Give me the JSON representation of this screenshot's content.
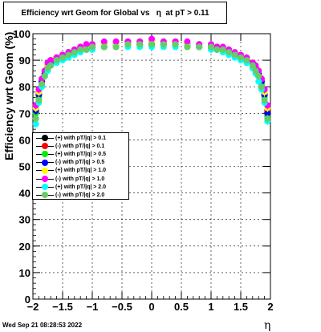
{
  "title": "Efficiency wrt Geom for Global vs   η  at pT > 0.11",
  "datestamp": "Wed Sep 21 08:28:53 2022",
  "chart_data": {
    "type": "scatter",
    "xlabel": "η",
    "ylabel": "Efficiency wrt Geom (%)",
    "xlim": [
      -2,
      2
    ],
    "ylim": [
      0,
      100
    ],
    "x_ticks": [
      "−2",
      "−1.5",
      "−1",
      "−0.5",
      "0",
      "0.5",
      "1",
      "1.5",
      "2"
    ],
    "y_ticks": [
      "0",
      "10",
      "20",
      "30",
      "40",
      "50",
      "60",
      "70",
      "80",
      "90",
      "100"
    ],
    "grid": true,
    "legend_position": "middle-left",
    "x": [
      -1.95,
      -1.9,
      -1.85,
      -1.8,
      -1.75,
      -1.7,
      -1.6,
      -1.5,
      -1.4,
      -1.3,
      -1.2,
      -1.1,
      -1.0,
      -0.8,
      -0.6,
      -0.4,
      -0.2,
      0.0,
      0.2,
      0.4,
      0.6,
      0.8,
      1.0,
      1.1,
      1.2,
      1.3,
      1.4,
      1.5,
      1.6,
      1.7,
      1.75,
      1.8,
      1.85,
      1.9,
      1.95
    ],
    "series": [
      {
        "name": "(+) with pT/|q| > 0.1",
        "color": "#000000",
        "values": [
          71,
          77,
          82,
          85,
          87,
          89,
          90,
          91,
          92,
          93,
          94,
          95,
          95,
          95,
          96,
          96,
          96,
          96,
          96,
          96,
          96,
          95,
          95,
          95,
          94,
          93,
          92,
          91,
          90,
          89,
          87,
          85,
          82,
          77,
          70
        ]
      },
      {
        "name": "(-) with pT/|q| > 0.1",
        "color": "#ff0000",
        "values": [
          72,
          78,
          82,
          86,
          88,
          90,
          91,
          92,
          93,
          94,
          95,
          95,
          96,
          96,
          96,
          97,
          97,
          97,
          97,
          97,
          96,
          96,
          95,
          95,
          94,
          93,
          92,
          91,
          90,
          89,
          88,
          86,
          83,
          78,
          71
        ]
      },
      {
        "name": "(+) with pT/|q| > 0.5",
        "color": "#00ee00",
        "values": [
          70,
          76,
          81,
          85,
          87,
          89,
          90,
          91,
          92,
          93,
          94,
          94,
          95,
          95,
          95,
          96,
          96,
          96,
          96,
          96,
          95,
          95,
          95,
          94,
          94,
          93,
          92,
          91,
          90,
          88,
          87,
          85,
          81,
          76,
          69
        ]
      },
      {
        "name": "(-) with pT/|q| > 0.5",
        "color": "#0000ff",
        "values": [
          71,
          77,
          82,
          85,
          88,
          89,
          91,
          92,
          93,
          93,
          94,
          95,
          95,
          96,
          96,
          96,
          96,
          96,
          96,
          96,
          96,
          95,
          95,
          95,
          94,
          93,
          92,
          91,
          90,
          89,
          87,
          85,
          82,
          77,
          70
        ]
      },
      {
        "name": "(+) with pT/|q| > 1.0",
        "color": "#ffff00",
        "values": [
          72,
          78,
          83,
          86,
          88,
          90,
          91,
          92,
          93,
          94,
          94,
          95,
          96,
          96,
          96,
          96,
          97,
          97,
          97,
          96,
          96,
          96,
          95,
          95,
          94,
          93,
          92,
          92,
          91,
          89,
          88,
          86,
          83,
          78,
          72
        ]
      },
      {
        "name": "(-) with pT/|q| > 1.0",
        "color": "#ff00ff",
        "values": [
          73,
          79,
          83,
          86,
          89,
          90,
          91,
          92,
          93,
          94,
          95,
          96,
          96,
          97,
          97,
          97,
          97,
          98,
          97,
          97,
          97,
          96,
          96,
          95,
          95,
          94,
          93,
          92,
          91,
          89,
          88,
          86,
          83,
          79,
          73
        ]
      },
      {
        "name": "(+) with pT/|q| > 2.0",
        "color": "#00ffff",
        "values": [
          66,
          74,
          80,
          84,
          86,
          88,
          89,
          90,
          91,
          92,
          93,
          94,
          94,
          95,
          95,
          95,
          95,
          95,
          95,
          95,
          95,
          95,
          94,
          94,
          93,
          92,
          91,
          90,
          89,
          87,
          85,
          82,
          79,
          74,
          67
        ]
      },
      {
        "name": "(-) with pT/|q| > 2.0",
        "color": "#66cc66",
        "values": [
          68,
          75,
          81,
          84,
          87,
          88,
          90,
          91,
          92,
          93,
          94,
          94,
          95,
          95,
          95,
          96,
          96,
          96,
          96,
          96,
          95,
          95,
          95,
          94,
          94,
          93,
          92,
          91,
          90,
          88,
          86,
          84,
          80,
          75,
          68
        ]
      }
    ]
  }
}
